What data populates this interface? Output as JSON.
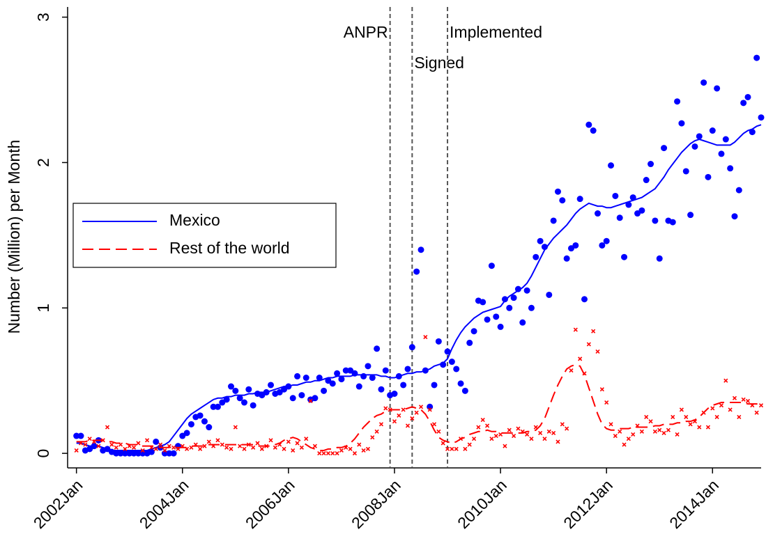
{
  "chart_data": {
    "type": "scatter-line",
    "y_label": "Number (Million) per Month",
    "x": [
      "2002-01",
      "2002-02",
      "2002-03",
      "2002-04",
      "2002-05",
      "2002-06",
      "2002-07",
      "2002-08",
      "2002-09",
      "2002-10",
      "2002-11",
      "2002-12",
      "2003-01",
      "2003-02",
      "2003-03",
      "2003-04",
      "2003-05",
      "2003-06",
      "2003-07",
      "2003-08",
      "2003-09",
      "2003-10",
      "2003-11",
      "2003-12",
      "2004-01",
      "2004-02",
      "2004-03",
      "2004-04",
      "2004-05",
      "2004-06",
      "2004-07",
      "2004-08",
      "2004-09",
      "2004-10",
      "2004-11",
      "2004-12",
      "2005-01",
      "2005-02",
      "2005-03",
      "2005-04",
      "2005-05",
      "2005-06",
      "2005-07",
      "2005-08",
      "2005-09",
      "2005-10",
      "2005-11",
      "2005-12",
      "2006-01",
      "2006-02",
      "2006-03",
      "2006-04",
      "2006-05",
      "2006-06",
      "2006-07",
      "2006-08",
      "2006-09",
      "2006-10",
      "2006-11",
      "2006-12",
      "2007-01",
      "2007-02",
      "2007-03",
      "2007-04",
      "2007-05",
      "2007-06",
      "2007-07",
      "2007-08",
      "2007-09",
      "2007-10",
      "2007-11",
      "2007-12",
      "2008-01",
      "2008-02",
      "2008-03",
      "2008-04",
      "2008-05",
      "2008-06",
      "2008-07",
      "2008-08",
      "2008-09",
      "2008-10",
      "2008-11",
      "2008-12",
      "2009-01",
      "2009-02",
      "2009-03",
      "2009-04",
      "2009-05",
      "2009-06",
      "2009-07",
      "2009-08",
      "2009-09",
      "2009-10",
      "2009-11",
      "2009-12",
      "2010-01",
      "2010-02",
      "2010-03",
      "2010-04",
      "2010-05",
      "2010-06",
      "2010-07",
      "2010-08",
      "2010-09",
      "2010-10",
      "2010-11",
      "2010-12",
      "2011-01",
      "2011-02",
      "2011-03",
      "2011-04",
      "2011-05",
      "2011-06",
      "2011-07",
      "2011-08",
      "2011-09",
      "2011-10",
      "2011-11",
      "2011-12",
      "2012-01",
      "2012-02",
      "2012-03",
      "2012-04",
      "2012-05",
      "2012-06",
      "2012-07",
      "2012-08",
      "2012-09",
      "2012-10",
      "2012-11",
      "2012-12",
      "2013-01",
      "2013-02",
      "2013-03",
      "2013-04",
      "2013-05",
      "2013-06",
      "2013-07",
      "2013-08",
      "2013-09",
      "2013-10",
      "2013-11",
      "2013-12",
      "2014-01",
      "2014-02",
      "2014-03",
      "2014-04",
      "2014-05",
      "2014-06",
      "2014-07",
      "2014-08",
      "2014-09",
      "2014-10",
      "2014-11",
      "2014-12"
    ],
    "xlim": [
      "2001-11",
      "2014-12"
    ],
    "xticks": [
      {
        "value": "2002-01",
        "label": "2002Jan"
      },
      {
        "value": "2004-01",
        "label": "2004Jan"
      },
      {
        "value": "2006-01",
        "label": "2006Jan"
      },
      {
        "value": "2008-01",
        "label": "2008Jan"
      },
      {
        "value": "2010-01",
        "label": "2010Jan"
      },
      {
        "value": "2012-01",
        "label": "2012Jan"
      },
      {
        "value": "2014-01",
        "label": "2014Jan"
      }
    ],
    "ylim": [
      -0.1,
      3.07
    ],
    "yticks": [
      0,
      1,
      2,
      3
    ],
    "legend": "center-left",
    "annotations": [
      {
        "x": "2007-12",
        "label": "ANPR"
      },
      {
        "x": "2008-05",
        "label": "Signed"
      },
      {
        "x": "2009-01",
        "label": "Implemented"
      }
    ],
    "series": [
      {
        "name": "Mexico",
        "color": "#0000ff",
        "dash": false,
        "marker": "circle",
        "values": [
          0.07,
          0.07,
          0.06,
          0.05,
          0.05,
          0.05,
          0.04,
          0.03,
          0.02,
          0.02,
          0.02,
          0.02,
          0.02,
          0.02,
          0.02,
          0.02,
          0.02,
          0.03,
          0.04,
          0.05,
          0.06,
          0.08,
          0.12,
          0.16,
          0.2,
          0.24,
          0.27,
          0.29,
          0.31,
          0.33,
          0.35,
          0.37,
          0.38,
          0.38,
          0.39,
          0.39,
          0.4,
          0.4,
          0.4,
          0.41,
          0.41,
          0.42,
          0.42,
          0.42,
          0.43,
          0.44,
          0.45,
          0.46,
          0.46,
          0.47,
          0.47,
          0.48,
          0.49,
          0.49,
          0.5,
          0.5,
          0.51,
          0.52,
          0.52,
          0.53,
          0.53,
          0.53,
          0.53,
          0.54,
          0.54,
          0.54,
          0.54,
          0.54,
          0.54,
          0.53,
          0.53,
          0.52,
          0.52,
          0.53,
          0.54,
          0.55,
          0.55,
          0.56,
          0.56,
          0.57,
          0.58,
          0.6,
          0.61,
          0.62,
          0.65,
          0.72,
          0.78,
          0.83,
          0.87,
          0.9,
          0.93,
          0.95,
          0.97,
          0.98,
          0.99,
          1.0,
          1.01,
          1.05,
          1.08,
          1.1,
          1.12,
          1.14,
          1.17,
          1.22,
          1.28,
          1.34,
          1.4,
          1.44,
          1.48,
          1.51,
          1.54,
          1.57,
          1.61,
          1.65,
          1.68,
          1.7,
          1.72,
          1.71,
          1.7,
          1.7,
          1.69,
          1.69,
          1.7,
          1.71,
          1.72,
          1.73,
          1.74,
          1.75,
          1.76,
          1.78,
          1.8,
          1.82,
          1.86,
          1.9,
          1.95,
          1.99,
          2.03,
          2.07,
          2.1,
          2.13,
          2.15,
          2.16,
          2.15,
          2.14,
          2.13,
          2.12,
          2.12,
          2.12,
          2.12,
          2.14,
          2.17,
          2.2,
          2.22,
          2.23,
          2.25,
          2.26
        ],
        "points": [
          0.12,
          0.12,
          0.02,
          0.03,
          0.05,
          0.09,
          0.02,
          0.03,
          0.01,
          0.0,
          0.0,
          0.0,
          0.0,
          0.0,
          0.0,
          0.0,
          0.0,
          0.01,
          0.08,
          0.04,
          0.0,
          0.0,
          0.0,
          0.05,
          0.12,
          0.14,
          0.2,
          0.25,
          0.26,
          0.22,
          0.18,
          0.32,
          0.32,
          0.35,
          0.37,
          0.46,
          0.43,
          0.38,
          0.35,
          0.44,
          0.33,
          0.41,
          0.4,
          0.42,
          0.47,
          0.41,
          0.42,
          0.44,
          0.46,
          0.38,
          0.53,
          0.4,
          0.52,
          0.37,
          0.38,
          0.52,
          0.43,
          0.5,
          0.48,
          0.55,
          0.51,
          0.57,
          0.57,
          0.55,
          0.46,
          0.53,
          0.6,
          0.52,
          0.72,
          0.44,
          0.57,
          0.4,
          0.41,
          0.53,
          0.47,
          0.58,
          0.73,
          1.25,
          1.4,
          0.57,
          0.32,
          0.47,
          0.77,
          0.61,
          0.7,
          0.63,
          0.58,
          0.48,
          0.43,
          0.76,
          0.84,
          1.05,
          1.04,
          0.92,
          1.29,
          0.94,
          0.87,
          1.06,
          1.0,
          1.07,
          1.13,
          0.9,
          1.12,
          1.0,
          1.35,
          1.46,
          1.42,
          1.09,
          1.6,
          1.8,
          1.74,
          1.34,
          1.41,
          1.43,
          1.75,
          1.06,
          2.26,
          2.22,
          1.65,
          1.43,
          1.46,
          1.98,
          1.77,
          1.62,
          1.35,
          1.71,
          1.76,
          1.65,
          1.67,
          1.88,
          1.99,
          1.6,
          1.34,
          2.1,
          1.6,
          1.59,
          2.42,
          2.27,
          1.94,
          1.64,
          2.11,
          2.18,
          2.55,
          1.9,
          2.22,
          2.51,
          2.06,
          2.16,
          1.96,
          1.63,
          1.81,
          2.41,
          2.45,
          2.21,
          2.72,
          2.31
        ]
      },
      {
        "name": "Rest of the world",
        "color": "#ff0000",
        "dash": true,
        "marker": "x",
        "values": [
          0.08,
          0.08,
          0.08,
          0.09,
          0.09,
          0.09,
          0.09,
          0.08,
          0.08,
          0.07,
          0.07,
          0.07,
          0.06,
          0.06,
          0.06,
          0.05,
          0.05,
          0.05,
          0.05,
          0.04,
          0.04,
          0.04,
          0.04,
          0.04,
          0.04,
          0.04,
          0.05,
          0.05,
          0.05,
          0.05,
          0.06,
          0.06,
          0.06,
          0.06,
          0.06,
          0.06,
          0.06,
          0.06,
          0.06,
          0.06,
          0.06,
          0.05,
          0.05,
          0.05,
          0.05,
          0.06,
          0.07,
          0.09,
          0.1,
          0.11,
          0.1,
          0.08,
          0.06,
          0.04,
          0.03,
          0.02,
          0.02,
          0.03,
          0.03,
          0.04,
          0.04,
          0.05,
          0.07,
          0.1,
          0.14,
          0.18,
          0.21,
          0.24,
          0.26,
          0.27,
          0.29,
          0.3,
          0.3,
          0.3,
          0.3,
          0.31,
          0.32,
          0.31,
          0.3,
          0.27,
          0.22,
          0.16,
          0.11,
          0.09,
          0.08,
          0.07,
          0.08,
          0.1,
          0.11,
          0.13,
          0.14,
          0.15,
          0.15,
          0.16,
          0.15,
          0.15,
          0.14,
          0.14,
          0.14,
          0.14,
          0.14,
          0.14,
          0.15,
          0.15,
          0.16,
          0.19,
          0.24,
          0.32,
          0.4,
          0.47,
          0.53,
          0.58,
          0.6,
          0.61,
          0.6,
          0.54,
          0.45,
          0.36,
          0.27,
          0.2,
          0.17,
          0.16,
          0.16,
          0.17,
          0.17,
          0.17,
          0.18,
          0.18,
          0.18,
          0.18,
          0.18,
          0.19,
          0.19,
          0.2,
          0.2,
          0.2,
          0.21,
          0.21,
          0.22,
          0.22,
          0.23,
          0.25,
          0.28,
          0.31,
          0.33,
          0.34,
          0.35,
          0.35,
          0.35,
          0.35,
          0.35,
          0.35,
          0.34,
          0.34,
          0.34,
          0.33
        ],
        "points": [
          0.02,
          0.07,
          0.06,
          0.1,
          0.08,
          0.05,
          0.09,
          0.18,
          0.06,
          0.04,
          0.06,
          0.03,
          0.05,
          0.04,
          0.07,
          0.02,
          0.09,
          0.04,
          0.03,
          0.06,
          0.02,
          0.05,
          0.04,
          0.03,
          0.05,
          0.03,
          0.04,
          0.06,
          0.03,
          0.05,
          0.08,
          0.05,
          0.09,
          0.06,
          0.04,
          0.03,
          0.18,
          0.05,
          0.03,
          0.06,
          0.04,
          0.07,
          0.03,
          0.05,
          0.09,
          0.04,
          0.06,
          0.03,
          0.08,
          0.02,
          0.07,
          0.04,
          0.1,
          0.36,
          0.05,
          0.0,
          0.0,
          0.0,
          0.0,
          0.0,
          0.02,
          0.04,
          0.03,
          0.0,
          0.06,
          0.02,
          0.03,
          0.11,
          0.15,
          0.2,
          0.31,
          0.3,
          0.22,
          0.26,
          0.3,
          0.19,
          0.24,
          0.28,
          0.32,
          0.8,
          0.3,
          0.2,
          0.15,
          0.07,
          0.03,
          0.03,
          0.03,
          0.1,
          0.03,
          0.06,
          0.1,
          0.18,
          0.23,
          0.19,
          0.1,
          0.12,
          0.13,
          0.05,
          0.16,
          0.12,
          0.17,
          0.15,
          0.13,
          0.1,
          0.18,
          0.14,
          0.1,
          0.15,
          0.14,
          0.08,
          0.2,
          0.17,
          0.57,
          0.85,
          0.65,
          0.55,
          0.75,
          0.84,
          0.7,
          0.44,
          0.35,
          0.2,
          0.12,
          0.15,
          0.06,
          0.1,
          0.13,
          0.19,
          0.15,
          0.25,
          0.22,
          0.15,
          0.16,
          0.14,
          0.16,
          0.25,
          0.13,
          0.3,
          0.25,
          0.2,
          0.22,
          0.18,
          0.28,
          0.18,
          0.31,
          0.25,
          0.33,
          0.5,
          0.3,
          0.38,
          0.25,
          0.37,
          0.36,
          0.33,
          0.28,
          0.33
        ]
      }
    ]
  }
}
